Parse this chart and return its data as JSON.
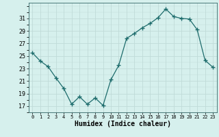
{
  "x": [
    0,
    1,
    2,
    3,
    4,
    5,
    6,
    7,
    8,
    9,
    10,
    11,
    12,
    13,
    14,
    15,
    16,
    17,
    18,
    19,
    20,
    21,
    22,
    23
  ],
  "y": [
    25.5,
    24.2,
    23.3,
    21.5,
    19.8,
    17.3,
    18.5,
    17.3,
    18.3,
    17.1,
    21.2,
    23.5,
    27.8,
    28.6,
    29.5,
    30.2,
    31.1,
    32.5,
    31.3,
    31.0,
    30.9,
    29.2,
    24.3,
    23.2
  ],
  "line_color": "#1c6b6b",
  "marker_color": "#1c6b6b",
  "bg_color": "#d6f0ed",
  "grid_color": "#c0dbd8",
  "xlabel": "Humidex (Indice chaleur)",
  "yticks": [
    17,
    19,
    21,
    23,
    25,
    27,
    29,
    31
  ],
  "xticks": [
    0,
    1,
    2,
    3,
    4,
    5,
    6,
    7,
    8,
    9,
    10,
    11,
    12,
    13,
    14,
    15,
    16,
    17,
    18,
    19,
    20,
    21,
    22,
    23
  ],
  "ylim": [
    16.0,
    33.5
  ],
  "xlim": [
    -0.5,
    23.5
  ]
}
